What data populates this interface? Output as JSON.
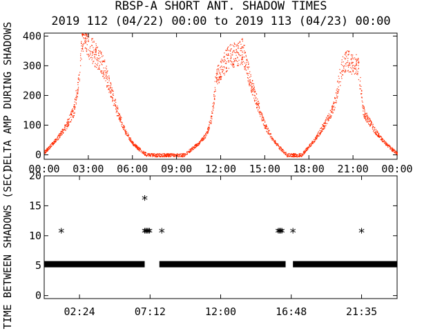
{
  "title_line1": "RBSP-A SHORT ANT. SHADOW TIMES",
  "title_line2": "2019 112 (04/22) 00:00 to 2019 113 (04/23) 00:00",
  "colors": {
    "red": "#ff2a00",
    "black": "#000000"
  },
  "chart_data": [
    {
      "type": "scatter",
      "ylabel": "DELTA AMP DURING SHADOWS",
      "xlim": [
        "00:00",
        "24:00"
      ],
      "ylim": [
        -15,
        410
      ],
      "x_ticks": [
        "00:00",
        "03:00",
        "06:00",
        "09:00",
        "12:00",
        "15:00",
        "18:00",
        "21:00",
        "00:00"
      ],
      "y_ticks": [
        "0",
        "100",
        "200",
        "300",
        "400"
      ],
      "series": [
        {
          "color": "#ff2a00",
          "envelope_points": [
            {
              "x": "00:00",
              "y": 10
            },
            {
              "x": "00:30",
              "y": 35
            },
            {
              "x": "01:00",
              "y": 65
            },
            {
              "x": "01:30",
              "y": 100
            },
            {
              "x": "02:00",
              "y": 150
            },
            {
              "x": "02:10",
              "y": 200
            },
            {
              "x": "02:20",
              "y": 260
            },
            {
              "x": "02:25",
              "y": 300
            },
            {
              "x": "02:35",
              "y": 400
            },
            {
              "x": "04:00",
              "y": 300
            },
            {
              "x": "04:30",
              "y": 220
            },
            {
              "x": "05:00",
              "y": 140
            },
            {
              "x": "05:30",
              "y": 80
            },
            {
              "x": "06:00",
              "y": 40
            },
            {
              "x": "06:40",
              "y": 10
            },
            {
              "x": "07:00",
              "y": 0
            },
            {
              "x": "09:30",
              "y": 0
            },
            {
              "x": "10:00",
              "y": 20
            },
            {
              "x": "10:30",
              "y": 40
            },
            {
              "x": "11:00",
              "y": 70
            },
            {
              "x": "11:20",
              "y": 120
            },
            {
              "x": "11:30",
              "y": 180
            },
            {
              "x": "11:40",
              "y": 260
            },
            {
              "x": "12:30",
              "y": 330
            },
            {
              "x": "13:30",
              "y": 350
            },
            {
              "x": "14:00",
              "y": 250
            },
            {
              "x": "14:30",
              "y": 170
            },
            {
              "x": "15:00",
              "y": 100
            },
            {
              "x": "15:30",
              "y": 55
            },
            {
              "x": "16:00",
              "y": 25
            },
            {
              "x": "16:30",
              "y": 0
            },
            {
              "x": "17:30",
              "y": 0
            },
            {
              "x": "18:00",
              "y": 30
            },
            {
              "x": "18:30",
              "y": 60
            },
            {
              "x": "19:00",
              "y": 100
            },
            {
              "x": "19:40",
              "y": 160
            },
            {
              "x": "20:00",
              "y": 240
            },
            {
              "x": "20:20",
              "y": 320
            },
            {
              "x": "21:20",
              "y": 300
            },
            {
              "x": "21:40",
              "y": 150
            },
            {
              "x": "22:00",
              "y": 120
            },
            {
              "x": "22:30",
              "y": 80
            },
            {
              "x": "23:00",
              "y": 50
            },
            {
              "x": "23:30",
              "y": 25
            },
            {
              "x": "24:00",
              "y": 5
            }
          ]
        }
      ]
    },
    {
      "type": "scatter",
      "ylabel": "TIME BETWEEN SHADOWS (SEC)",
      "xlim": [
        "00:00",
        "24:00"
      ],
      "ylim": [
        -0.5,
        20
      ],
      "x_ticks": [
        "02:24",
        "07:12",
        "12:00",
        "16:48",
        "21:35"
      ],
      "y_ticks": [
        "0",
        "5",
        "10",
        "15",
        "20"
      ],
      "marker": "*",
      "series": [
        {
          "color": "#000000",
          "baseline_segments": [
            {
              "x_start": "00:00",
              "x_end": "06:50",
              "y": 5.3
            },
            {
              "x_start": "07:50",
              "x_end": "16:25",
              "y": 5.3
            },
            {
              "x_start": "16:55",
              "x_end": "24:00",
              "y": 5.3
            }
          ],
          "points": [
            {
              "x": "01:10",
              "y": 10.6
            },
            {
              "x": "06:50",
              "y": 10.6
            },
            {
              "x": "06:55",
              "y": 10.6
            },
            {
              "x": "07:00",
              "y": 10.6
            },
            {
              "x": "07:05",
              "y": 10.6
            },
            {
              "x": "07:10",
              "y": 10.6
            },
            {
              "x": "06:50",
              "y": 16.1
            },
            {
              "x": "08:00",
              "y": 10.6
            },
            {
              "x": "15:55",
              "y": 10.6
            },
            {
              "x": "16:00",
              "y": 10.6
            },
            {
              "x": "16:05",
              "y": 10.6
            },
            {
              "x": "16:10",
              "y": 10.6
            },
            {
              "x": "16:55",
              "y": 10.6
            },
            {
              "x": "21:35",
              "y": 10.6
            }
          ]
        }
      ]
    }
  ]
}
